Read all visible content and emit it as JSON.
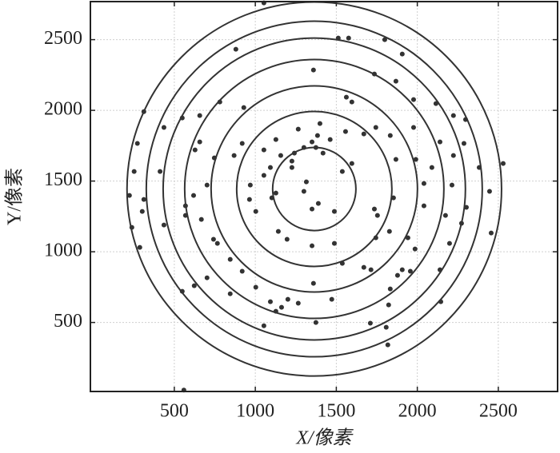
{
  "chart_data": {
    "type": "scatter",
    "x_label": "X/像素",
    "y_label": "Y/像素",
    "xlim": [
      -18,
      2866
    ],
    "ylim": [
      12,
      2769
    ],
    "xticks": [
      500,
      1000,
      1500,
      2000,
      2500
    ],
    "yticks": [
      500,
      1000,
      1500,
      2000,
      2500
    ],
    "grid": true,
    "color": "#333333",
    "circle_center": [
      1364,
      1444
    ],
    "circle_radii": [
      257,
      479,
      637,
      800,
      933,
      1037,
      1156
    ],
    "circle_color": "#333333",
    "x": [
      1053,
      880,
      1512,
      1576,
      1799,
      1907,
      1359,
      1562,
      1596,
      1735,
      1868,
      1977,
      2115,
      2223,
      2298,
      2288,
      2140,
      1977,
      1833,
      1744,
      1670,
      1557,
      1399,
      1265,
      1127,
      1053,
      919,
      869,
      747,
      628,
      657,
      436,
      549,
      657,
      781,
      929,
      312,
      272,
      252,
      312,
      302,
      223,
      238,
      287,
      436,
      412,
      569,
      569,
      619,
      702,
      667,
      766,
      742,
      845,
      919,
      702,
      623,
      549,
      845,
      1003,
      1093,
      1162,
      1201,
      1265,
      1359,
      1472,
      1374,
      1053,
      1127,
      1537,
      1670,
      1714,
      1744,
      1828,
      1942,
      1986,
      1957,
      1878,
      1907,
      1833,
      1823,
      1710,
      1808,
      1818,
      2145,
      2140,
      2199,
      2273,
      2446,
      2456,
      2530,
      2382,
      2041,
      2041,
      1991,
      2090,
      2223,
      1868,
      1853,
      1735,
      1754,
      1596,
      1537,
      1488,
      1389,
      1350,
      1300,
      1315,
      1226,
      1226,
      1350,
      1300,
      1241,
      1374,
      1418,
      1462,
      1384,
      1157,
      1093,
      1053,
      1127,
      1102,
      1142,
      1196,
      1350,
      1488,
      969,
      964,
      1003,
      559,
      2214,
      2303,
      2174
    ],
    "y": [
      2760,
      2432,
      2511,
      2511,
      2500,
      2398,
      2285,
      2093,
      2059,
      2257,
      2206,
      2076,
      2048,
      1963,
      1935,
      1766,
      1777,
      1879,
      1822,
      1879,
      1833,
      1850,
      1907,
      1867,
      1794,
      1720,
      1766,
      1681,
      1664,
      1720,
      1777,
      1879,
      1946,
      1963,
      2059,
      2020,
      1991,
      1766,
      1568,
      1370,
      1285,
      1398,
      1172,
      1031,
      1189,
      1568,
      1325,
      1257,
      1398,
      1472,
      1229,
      1059,
      1088,
      946,
      862,
      816,
      760,
      720,
      703,
      749,
      647,
      607,
      664,
      636,
      777,
      664,
      500,
      477,
      579,
      918,
      890,
      873,
      1099,
      1144,
      1099,
      1020,
      862,
      833,
      873,
      737,
      624,
      495,
      466,
      342,
      647,
      873,
      1059,
      1201,
      1427,
      1133,
      1624,
      1596,
      1483,
      1325,
      1653,
      1596,
      1681,
      1653,
      1381,
      1302,
      1257,
      1624,
      1568,
      1285,
      1342,
      1302,
      1427,
      1494,
      1641,
      1596,
      1777,
      1737,
      1698,
      1737,
      1698,
      1794,
      1822,
      1681,
      1596,
      1540,
      1415,
      1381,
      1144,
      1088,
      1042,
      1059,
      1472,
      1370,
      1285,
      22,
      1472,
      1314,
      1257
    ]
  }
}
